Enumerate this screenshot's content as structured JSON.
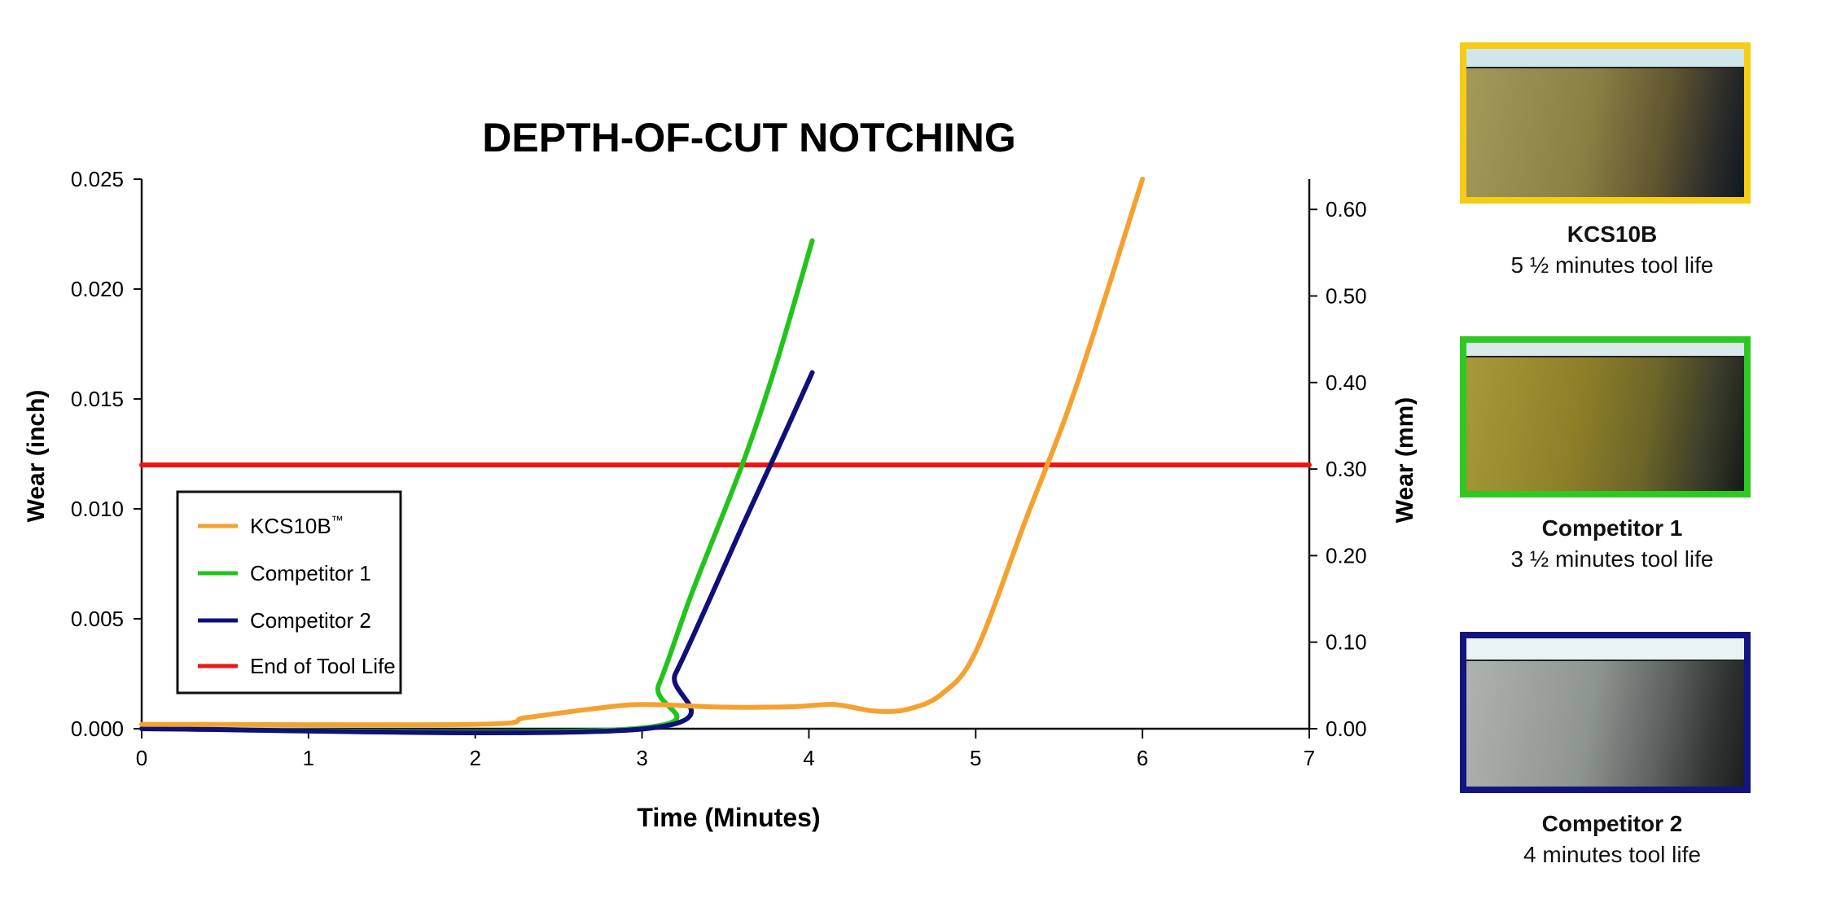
{
  "chart_data": {
    "type": "line",
    "title": "DEPTH-OF-CUT NOTCHING",
    "xlabel": "Time (Minutes)",
    "ylabel": "Wear (inch)",
    "y2label": "Wear (mm)",
    "xlim": [
      0,
      7
    ],
    "ylim": [
      0,
      0.025
    ],
    "y2lim": [
      0,
      0.635
    ],
    "xticks": [
      "0",
      "1",
      "2",
      "3",
      "4",
      "5",
      "6",
      "7"
    ],
    "yticks": [
      "0.000",
      "0.005",
      "0.010",
      "0.015",
      "0.020",
      "0.025"
    ],
    "y2ticks": [
      "0.00",
      "0.10",
      "0.20",
      "0.30",
      "0.40",
      "0.50",
      "0.60"
    ],
    "legend_position": "lower-left",
    "grid": false,
    "series": [
      {
        "name": "KCS10B™",
        "legend_label": "KCS10B",
        "legend_sup": "™",
        "color": "#f5a130",
        "x": [
          0,
          2.0,
          2.3,
          2.7,
          3.0,
          3.5,
          3.9,
          4.15,
          4.4,
          4.6,
          4.8,
          5.0,
          5.3,
          5.6,
          6.0
        ],
        "y": [
          0.0002,
          0.0002,
          0.0005,
          0.0009,
          0.0011,
          0.00098,
          0.001,
          0.0011,
          0.0008,
          0.0009,
          0.0016,
          0.0035,
          0.0095,
          0.0155,
          0.025
        ]
      },
      {
        "name": "Competitor 1",
        "color": "#22c41c",
        "x": [
          0,
          2.95,
          3.1,
          3.3,
          3.6,
          3.8,
          4.02
        ],
        "y": [
          0,
          0,
          0.002,
          0.0062,
          0.012,
          0.0165,
          0.0222
        ]
      },
      {
        "name": "Competitor 2",
        "color": "#10107a",
        "x": [
          0,
          3.02,
          3.2,
          3.4,
          3.6,
          3.8,
          4.02
        ],
        "y": [
          0,
          0,
          0.0025,
          0.0058,
          0.0092,
          0.0125,
          0.0162
        ]
      },
      {
        "name": "End of Tool Life",
        "color": "#ef1515",
        "x": [
          0,
          7
        ],
        "y": [
          0.012,
          0.012
        ]
      }
    ]
  },
  "photos": [
    {
      "title": "KCS10B",
      "subtitle": "5 ½ minutes tool life",
      "border_color": "#f7cc16"
    },
    {
      "title": "Competitor 1",
      "subtitle": "3 ½ minutes tool life",
      "border_color": "#2ec920"
    },
    {
      "title": "Competitor 2",
      "subtitle": "4 minutes tool life",
      "border_color": "#14147e"
    }
  ]
}
